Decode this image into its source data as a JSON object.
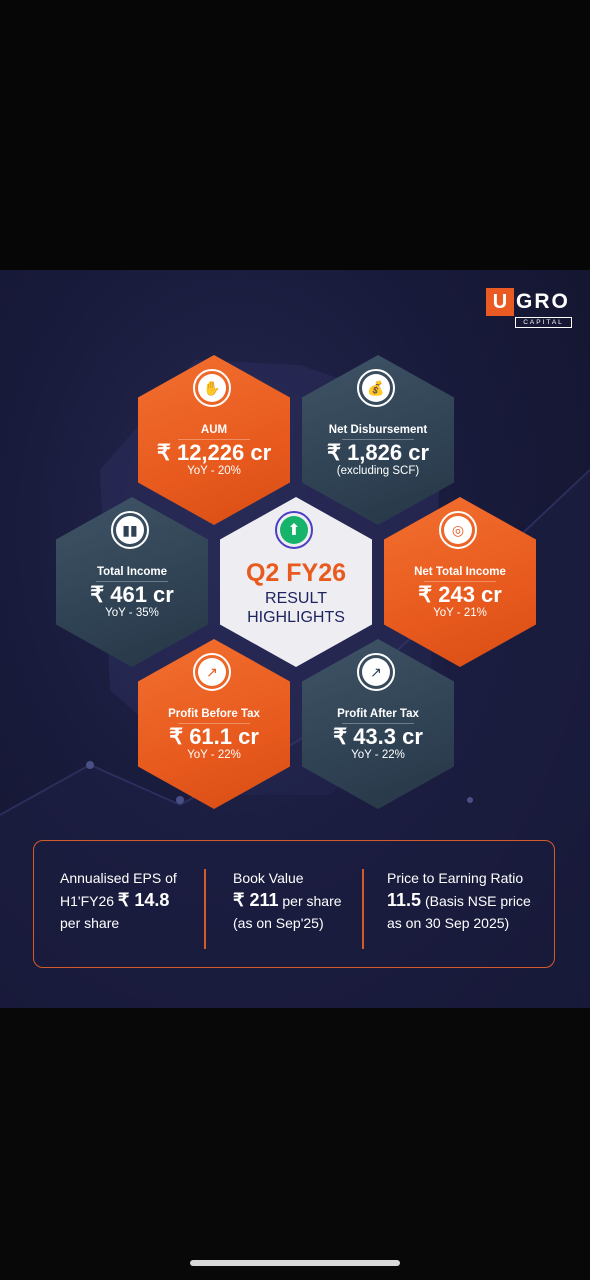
{
  "brand": {
    "logo_mark": "U",
    "logo_word": "GRO",
    "logo_sub": "CAPITAL",
    "accent": "#ea5b24",
    "slate": "#2f4254",
    "navy": "#191b3c"
  },
  "center": {
    "title": "Q2 FY26",
    "subtitle_line1": "RESULT",
    "subtitle_line2": "HIGHLIGHTS",
    "icon": "arrow-up-icon"
  },
  "metrics": {
    "aum": {
      "label": "AUM",
      "value": "₹ 12,226 cr",
      "sub": "YoY - 20%",
      "icon": "money-hand-icon"
    },
    "net_disbursement": {
      "label": "Net Disbursement",
      "value": "₹ 1,826 cr",
      "sub": "(excluding SCF)",
      "icon": "money-bag-icon"
    },
    "total_income": {
      "label": "Total Income",
      "value": "₹ 461 cr",
      "sub": "YoY - 35%",
      "icon": "bar-chart-icon"
    },
    "net_total_income": {
      "label": "Net Total Income",
      "value": "₹ 243 cr",
      "sub": "YoY - 21%",
      "icon": "coins-icon"
    },
    "pbt": {
      "label": "Profit Before Tax",
      "value": "₹ 61.1 cr",
      "sub": "YoY - 22%",
      "icon": "trend-up-icon"
    },
    "pat": {
      "label": "Profit After Tax",
      "value": "₹ 43.3 cr",
      "sub": "YoY - 22%",
      "icon": "trend-up-icon"
    }
  },
  "summary": {
    "eps": {
      "line1": "Annualised EPS of",
      "line2_prefix": "H1'FY26",
      "value": "₹ 14.8",
      "line3": "per share"
    },
    "book_value": {
      "line1": "Book Value",
      "value": "₹ 211",
      "value_suffix": "per share",
      "line3": "(as on Sep'25)"
    },
    "pe_ratio": {
      "line1": "Price to Earning Ratio",
      "value": "11.5",
      "value_suffix": "(Basis NSE price",
      "line3": "as on 30 Sep 2025)"
    }
  }
}
